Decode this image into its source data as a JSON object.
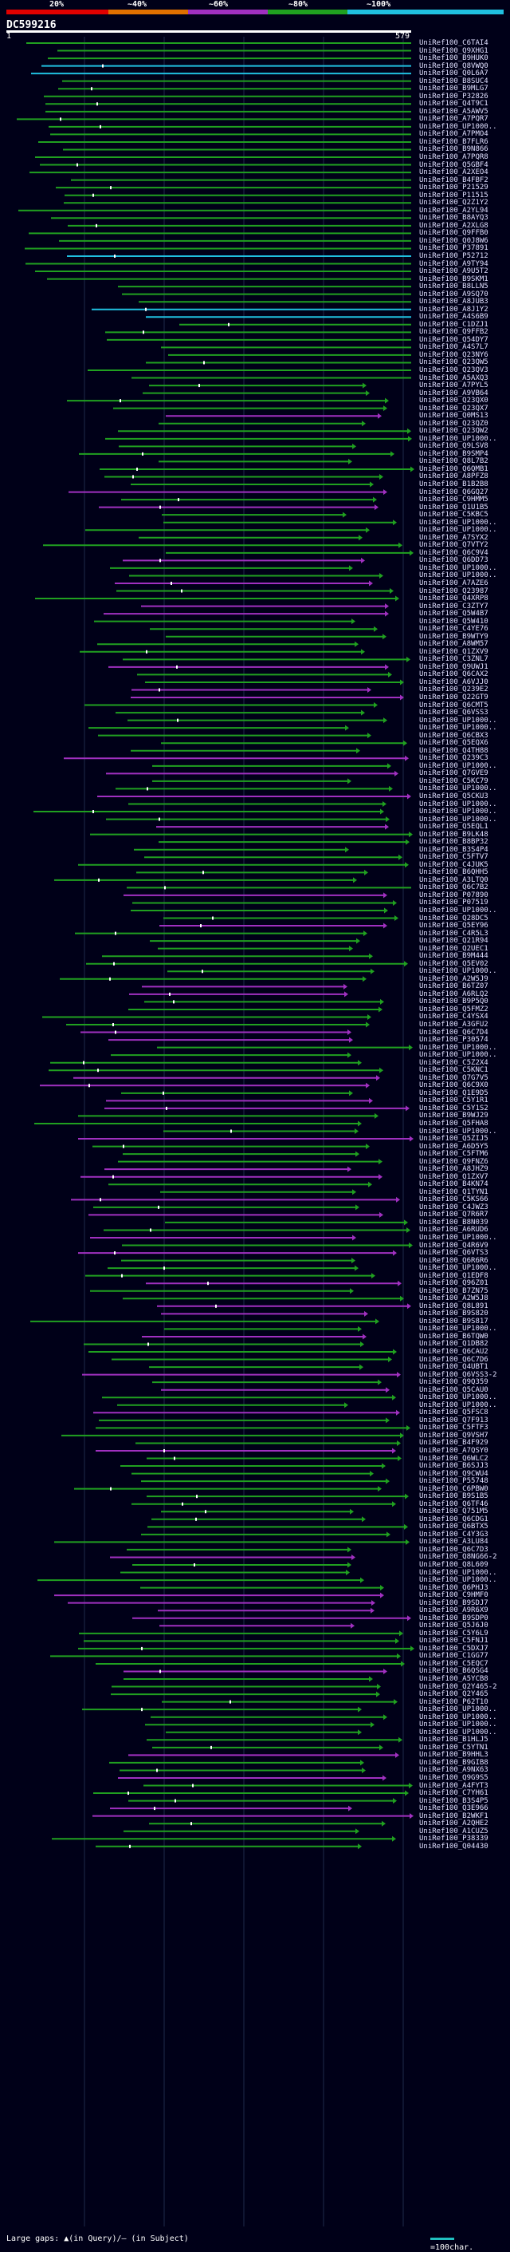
{
  "scale": {
    "labels": [
      "20%",
      "~40%",
      "~60%",
      "~80%",
      "~100%"
    ],
    "colors": [
      "#e00000",
      "#e07000",
      "#a030c0",
      "#20a020",
      "#20c0e0"
    ]
  },
  "query": {
    "title": "DC599216",
    "start": "1",
    "end": "579"
  },
  "hits": [
    "UniRef100_C6TAI4",
    "UniRef100_Q9XHG1",
    "UniRef100_B9HUK0",
    "UniRef100_Q8VWQ0",
    "UniRef100_Q0L6A7",
    "UniRef100_B8SUC4",
    "UniRef100_B9MLG7",
    "UniRef100_P32826",
    "UniRef100_Q4T9C1",
    "UniRef100_A5AWV5",
    "UniRef100_A7PQR7",
    "UniRef100_UP1000..",
    "UniRef100_A7PMO4",
    "UniRef100_B7FLR6",
    "UniRef100_B9N866",
    "UniRef100_A7PQR8",
    "UniRef100_Q5GBF4",
    "UniRef100_A2XEO4",
    "UniRef100_B4FBF2",
    "UniRef100_P21529",
    "UniRef100_P11515",
    "UniRef100_Q2Z1Y2",
    "UniRef100_A2YL94",
    "UniRef100_B8AYQ3",
    "UniRef100_A2XLG8",
    "UniRef100_Q9FFB0",
    "UniRef100_Q0J8W6",
    "UniRef100_P37891",
    "UniRef100_P52712",
    "UniRef100_A9TY94",
    "UniRef100_A9U5T2",
    "UniRef100_B9SKM1",
    "UniRef100_B8LLN5",
    "UniRef100_A9SQ70",
    "UniRef100_A8JUB3",
    "UniRef100_A8J1Y2",
    "UniRef100_A4S6B9",
    "UniRef100_C1DZJ1",
    "UniRef100_Q9FFB2",
    "UniRef100_Q54DY7",
    "UniRef100_A4S7L7",
    "UniRef100_Q23NY6",
    "UniRef100_Q23QW5",
    "UniRef100_Q23QV3",
    "UniRef100_A5AXQ3",
    "UniRef100_A7PYL5",
    "UniRef100_A9VB64",
    "UniRef100_Q23QX0",
    "UniRef100_Q23QX7",
    "UniRef100_Q0MS13",
    "UniRef100_Q23QZ0",
    "UniRef100_Q23QW2",
    "UniRef100_UP1000..",
    "UniRef100_Q9LSV8",
    "UniRef100_B9SMP4",
    "UniRef100_Q8L7B2",
    "UniRef100_Q6QMB1",
    "UniRef100_A8PFZ8",
    "UniRef100_B1B2B8",
    "UniRef100_Q6GQ27",
    "UniRef100_C9HMM5",
    "UniRef100_Q1U1B5",
    "UniRef100_C5KBC5",
    "UniRef100_UP1000..",
    "UniRef100_UP1000..",
    "UniRef100_A7SYX2",
    "UniRef100_Q7VTY2",
    "UniRef100_Q6C9V4",
    "UniRef100_Q6DD73",
    "UniRef100_UP1000..",
    "UniRef100_UP1000..",
    "UniRef100_A7AZE6",
    "UniRef100_Q23987",
    "UniRef100_Q4XRP8",
    "UniRef100_C3ZTY7",
    "UniRef100_Q5W4B7",
    "UniRef100_Q5W410",
    "UniRef100_C4YE76",
    "UniRef100_B9WTY9",
    "UniRef100_A8WM57",
    "UniRef100_Q1ZXV9",
    "UniRef100_C3ZNL7",
    "UniRef100_Q9UWJ1",
    "UniRef100_Q6CAX2",
    "UniRef100_A6VJJ0",
    "UniRef100_Q239E2",
    "UniRef100_Q22GT9",
    "UniRef100_Q6CMT5",
    "UniRef100_Q6VSS3",
    "UniRef100_UP1000..",
    "UniRef100_UP1000..",
    "UniRef100_Q6CBX3",
    "UniRef100_Q5EQX6",
    "UniRef100_Q4TH88",
    "UniRef100_Q239C3",
    "UniRef100_UP1000..",
    "UniRef100_Q7GVE9",
    "UniRef100_C5KC79",
    "UniRef100_UP1000..",
    "UniRef100_Q5CKU3",
    "UniRef100_UP1000..",
    "UniRef100_UP1000..",
    "UniRef100_UP1000..",
    "UniRef100_Q5EQL1",
    "UniRef100_B9LK48",
    "UniRef100_B8BP32",
    "UniRef100_B3S4P4",
    "UniRef100_C5FTV7",
    "UniRef100_C4JUK5",
    "UniRef100_B6QHH5",
    "UniRef100_A3LTQ0",
    "UniRef100_Q6C7B2",
    "UniRef100_P07890",
    "UniRef100_P07519",
    "UniRef100_UP1000..",
    "UniRef100_Q28DC5",
    "UniRef100_Q5EY96",
    "UniRef100_C4R5L3",
    "UniRef100_Q21R94",
    "UniRef100_Q2UEC1",
    "UniRef100_B9M444",
    "UniRef100_Q5EV02",
    "UniRef100_UP1000..",
    "UniRef100_A2W5J9",
    "UniRef100_B6TZ07",
    "UniRef100_A6RLQ2",
    "UniRef100_B9P5Q0",
    "UniRef100_Q5FMZ2",
    "UniRef100_C4YSX4",
    "UniRef100_A3GFU2",
    "UniRef100_Q6C7D4",
    "UniRef100_P30574",
    "UniRef100_UP1000..",
    "UniRef100_UP1000..",
    "UniRef100_C5Z2X4",
    "UniRef100_C5KNC1",
    "UniRef100_Q7G7V5",
    "UniRef100_Q6C9X0",
    "UniRef100_Q1E9D5",
    "UniRef100_C5Y1R1",
    "UniRef100_C5Y1S2",
    "UniRef100_B9WJ29",
    "UniRef100_Q5FHA8",
    "UniRef100_UP1000..",
    "UniRef100_Q5ZIJ5",
    "UniRef100_A6D5Y5",
    "UniRef100_C5FTM6",
    "UniRef100_Q9FNZ6",
    "UniRef100_A8JHZ9",
    "UniRef100_Q1ZXV7",
    "UniRef100_B4KN74",
    "UniRef100_Q1TYN1",
    "UniRef100_C5KS66",
    "UniRef100_C4JWZ3",
    "UniRef100_Q7R6R7",
    "UniRef100_B8N039",
    "UniRef100_A6RUD6",
    "UniRef100_UP1000..",
    "UniRef100_Q4R6V9",
    "UniRef100_Q6VTS3",
    "UniRef100_Q6R6R6",
    "UniRef100_UP1000..",
    "UniRef100_Q1EDF8",
    "UniRef100_Q96Z01",
    "UniRef100_B7ZN75",
    "UniRef100_A2W5J8",
    "UniRef100_Q8L891",
    "UniRef100_B9S820",
    "UniRef100_B9S817",
    "UniRef100_UP1000..",
    "UniRef100_B6TQW0",
    "UniRef100_Q1DB82",
    "UniRef100_Q6CAU2",
    "UniRef100_Q6C7D6",
    "UniRef100_Q4UBT1",
    "UniRef100_Q6VSS3-2",
    "UniRef100_Q9Q359",
    "UniRef100_Q5CAU0",
    "UniRef100_UP1000..",
    "UniRef100_UP1000..",
    "UniRef100_Q5FSC8",
    "UniRef100_Q7F913",
    "UniRef100_C5FTF3",
    "UniRef100_Q9VSH7",
    "UniRef100_B4F929",
    "UniRef100_A7QSY0",
    "UniRef100_Q6WLC2",
    "UniRef100_B6SJJ3",
    "UniRef100_Q9CWU4",
    "UniRef100_P55748",
    "UniRef100_C6PBW0",
    "UniRef100_B9S1B5",
    "UniRef100_Q6TF46",
    "UniRef100_Q751M5",
    "UniRef100_Q6CDG1",
    "UniRef100_Q6BTX5",
    "UniRef100_C4Y3G3",
    "UniRef100_A3LU84",
    "UniRef100_Q6C7D3",
    "UniRef100_Q8NG66-2",
    "UniRef100_Q8L609",
    "UniRef100_UP1000..",
    "UniRef100_UP1000..",
    "UniRef100_Q6PHJ3",
    "UniRef100_C9HMF0",
    "UniRef100_B9SDJ7",
    "UniRef100_A9R6X9",
    "UniRef100_B9SDP0",
    "UniRef100_Q5J6J0",
    "UniRef100_C5Y6L9",
    "UniRef100_C5FNJ1",
    "UniRef100_C5DXJ7",
    "UniRef100_C1GG77",
    "UniRef100_C5EQC7",
    "UniRef100_B6QSG4",
    "UniRef100_A5YCB8",
    "UniRef100_Q2Y465-2",
    "UniRef100_Q2Y465",
    "UniRef100_P62T10",
    "UniRef100_UP1000..",
    "UniRef100_UP1000..",
    "UniRef100_UP1000..",
    "UniRef100_UP1000..",
    "UniRef100_B1HLJ5",
    "UniRef100_C5YTN1",
    "UniRef100_B9HHL3",
    "UniRef100_B9GIB8",
    "UniRef100_A9NX63",
    "UniRef100_Q9G9S5",
    "UniRef100_A4FYT3",
    "UniRef100_C7YH61",
    "UniRef100_B3S4P5",
    "UniRef100_Q3E966",
    "UniRef100_B2WKF1",
    "UniRef100_A2QHE2",
    "UniRef100_A1CUZ5",
    "UniRef100_P38339",
    "UniRef100_Q04430"
  ],
  "footer": {
    "gaps_text": "Large gaps: ▲(in Query)/– (in Subject)",
    "scale_text": "=100char."
  }
}
